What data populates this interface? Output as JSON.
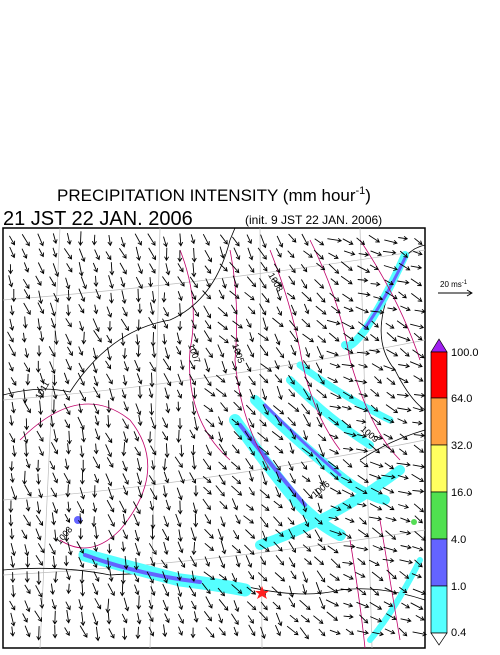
{
  "header": {
    "title": "PRECIPITATION INTENSITY (mm hour",
    "title_exp": "-1",
    "title_end": ")",
    "time": "21 JST 22 JAN. 2006",
    "init": "(init. 9 JST 22 JAN. 2006)"
  },
  "wind_legend": {
    "label": "20 ms",
    "label_exp": "-1"
  },
  "colorbar": {
    "labels": [
      "100.0",
      "64.0",
      "32.0",
      "16.0",
      "4.0",
      "1.0",
      "0.4"
    ]
  },
  "contours": {
    "labels": [
      "1011",
      "1008",
      "1007",
      "1005",
      "1006",
      "1008",
      "1009"
    ]
  }
}
